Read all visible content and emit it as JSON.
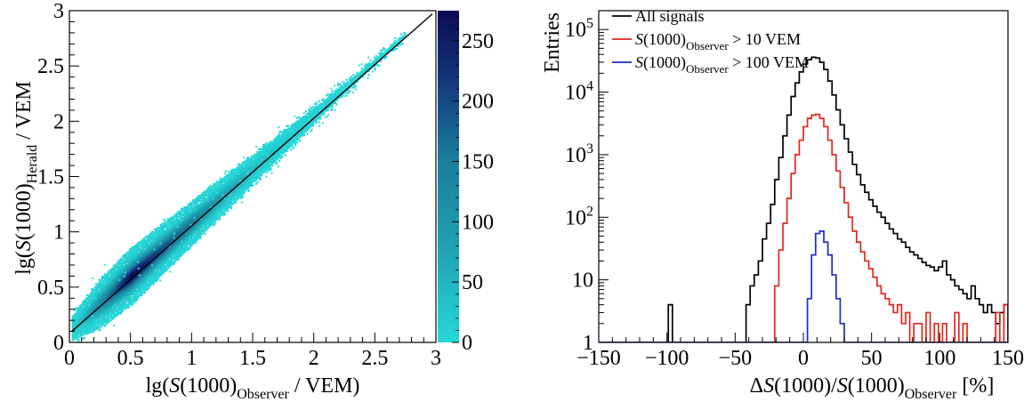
{
  "chart_data": [
    {
      "type": "heatmap",
      "xlabel": {
        "prefix": "lg(",
        "var": "S",
        "mid": "(1000)",
        "sub": "Observer",
        "suffix": " / VEM)"
      },
      "ylabel": {
        "prefix": "lg(",
        "var": "S",
        "mid": "(1000)",
        "sub": "Herald",
        "suffix": " / VEM"
      },
      "xlim": [
        0,
        3
      ],
      "ylim": [
        0,
        3
      ],
      "xticks": [
        "0",
        "0.5",
        "1",
        "1.5",
        "2",
        "2.5",
        "3"
      ],
      "yticks": [
        "0",
        "0.5",
        "1",
        "1.5",
        "2",
        "2.5",
        "3"
      ],
      "colorbar": {
        "min": 0,
        "max": 275,
        "ticks": [
          "0",
          "50",
          "100",
          "150",
          "200",
          "250"
        ],
        "low_color": "#27d7d8",
        "mid_color": "#1a7e9c",
        "high_color": "#0b0b52"
      },
      "reference_line": {
        "from": [
          0.02,
          0.1
        ],
        "to": [
          2.97,
          2.97
        ],
        "color": "#000000"
      },
      "density_ridge": [
        {
          "x": 0.05,
          "width": 0.06,
          "counts": 20
        },
        {
          "x": 0.25,
          "width": 0.09,
          "counts": 120
        },
        {
          "x": 0.5,
          "width": 0.1,
          "counts": 270
        },
        {
          "x": 0.75,
          "width": 0.09,
          "counts": 200
        },
        {
          "x": 1.0,
          "width": 0.08,
          "counts": 150
        },
        {
          "x": 1.25,
          "width": 0.07,
          "counts": 80
        },
        {
          "x": 1.5,
          "width": 0.06,
          "counts": 40
        },
        {
          "x": 1.75,
          "width": 0.05,
          "counts": 20
        },
        {
          "x": 2.0,
          "width": 0.04,
          "counts": 8
        },
        {
          "x": 2.3,
          "width": 0.03,
          "counts": 2
        },
        {
          "x": 2.7,
          "width": 0.02,
          "counts": 1
        }
      ]
    },
    {
      "type": "line",
      "xlabel": {
        "prefix": "Δ",
        "var": "S",
        "mid": "(1000)/",
        "var2": "S",
        "mid2": "(1000)",
        "sub": "Observer",
        "suffix": " [%]"
      },
      "ylabel": "Entries",
      "xlim": [
        -150,
        150
      ],
      "ylim": [
        1,
        200000
      ],
      "yscale": "log",
      "xticks": [
        -150,
        -100,
        -50,
        0,
        50,
        100,
        150
      ],
      "xtick_labels": [
        "−150",
        "−100",
        "−50",
        "0",
        "50",
        "100",
        "150"
      ],
      "yticks": [
        1,
        10,
        100,
        1000,
        10000,
        100000
      ],
      "ytick_labels": [
        {
          "base": "1",
          "exp": ""
        },
        {
          "base": "10",
          "exp": ""
        },
        {
          "base": "10",
          "exp": "2"
        },
        {
          "base": "10",
          "exp": "3"
        },
        {
          "base": "10",
          "exp": "4"
        },
        {
          "base": "10",
          "exp": "5"
        }
      ],
      "bin_width": 3,
      "legend": {
        "position": "top-left",
        "entries": [
          {
            "plain": "All signals"
          },
          {
            "var": "S",
            "mid": "(1000)",
            "sub": "Observer",
            "suffix": " > 10 VEM"
          },
          {
            "var": "S",
            "mid": "(1000)",
            "sub": "Observer",
            "suffix": " > 100 VEM"
          }
        ]
      },
      "series": [
        {
          "color": "#000000",
          "x": [
            -150,
            -102,
            -99,
            -96,
            -60,
            -57,
            -54,
            -45,
            -42,
            -39,
            -36,
            -33,
            -30,
            -27,
            -24,
            -21,
            -18,
            -15,
            -12,
            -9,
            -6,
            -3,
            0,
            3,
            6,
            9,
            12,
            15,
            18,
            21,
            24,
            27,
            30,
            33,
            36,
            39,
            42,
            45,
            48,
            51,
            54,
            57,
            60,
            63,
            66,
            69,
            72,
            75,
            78,
            81,
            84,
            87,
            90,
            93,
            96,
            99,
            102,
            105,
            108,
            111,
            114,
            117,
            120,
            123,
            126,
            129,
            132,
            135,
            138,
            141,
            144,
            147,
            150
          ],
          "values": [
            1,
            1,
            4,
            1,
            1,
            1,
            1,
            1,
            4,
            8,
            12,
            20,
            45,
            80,
            160,
            400,
            900,
            2000,
            4300,
            8500,
            14000,
            21000,
            28000,
            33000,
            36000,
            35000,
            30000,
            23000,
            15000,
            9000,
            5200,
            3000,
            1800,
            1100,
            700,
            480,
            330,
            250,
            190,
            150,
            120,
            100,
            80,
            65,
            55,
            45,
            40,
            33,
            28,
            25,
            22,
            19,
            17,
            16,
            14,
            16,
            20,
            12,
            10,
            8,
            7,
            6,
            5,
            8,
            5,
            4,
            3,
            4,
            3,
            2,
            3,
            4,
            1
          ]
        },
        {
          "color": "#e1261c",
          "x": [
            -150,
            -24,
            -21,
            -18,
            -15,
            -12,
            -9,
            -6,
            -3,
            0,
            3,
            6,
            9,
            12,
            15,
            18,
            21,
            24,
            27,
            30,
            33,
            36,
            39,
            42,
            45,
            48,
            51,
            54,
            57,
            60,
            63,
            66,
            69,
            72,
            75,
            78,
            81,
            84,
            87,
            90,
            93,
            96,
            99,
            102,
            105,
            108,
            111,
            114,
            117,
            120,
            123,
            126,
            129,
            132,
            135,
            138,
            141,
            144,
            147,
            150
          ],
          "values": [
            1,
            1,
            8,
            30,
            80,
            200,
            500,
            1000,
            1700,
            2800,
            3800,
            4300,
            4400,
            3800,
            2800,
            1700,
            1000,
            550,
            300,
            170,
            100,
            60,
            40,
            28,
            20,
            15,
            11,
            8,
            6,
            5,
            4,
            3,
            4,
            2,
            3,
            1,
            2,
            2,
            1,
            3,
            1,
            2,
            1,
            2,
            1,
            1,
            3,
            1,
            2,
            1,
            1,
            1,
            1,
            1,
            1,
            1,
            3,
            1,
            4,
            1
          ]
        },
        {
          "color": "#1b2cc1",
          "x": [
            -150,
            0,
            3,
            6,
            9,
            12,
            15,
            18,
            21,
            24,
            27,
            30,
            33,
            150
          ],
          "values": [
            1,
            1,
            5,
            25,
            55,
            60,
            40,
            25,
            12,
            5,
            2,
            1,
            1,
            1
          ]
        }
      ]
    }
  ]
}
